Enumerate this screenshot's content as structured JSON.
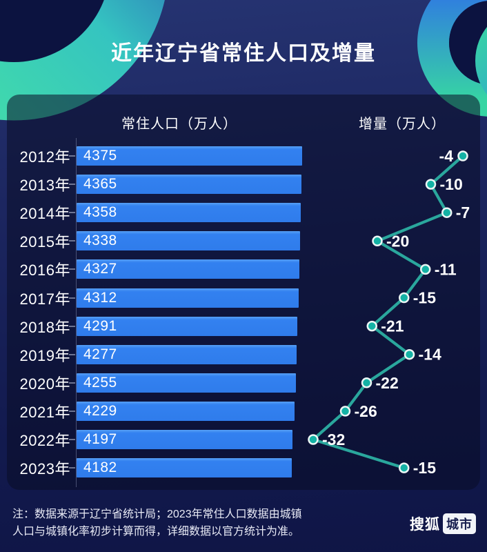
{
  "title": "近年辽宁省常住人口及增量",
  "columns": {
    "population": "常住人口（万人）",
    "increment": "增量（万人）"
  },
  "chart_data": {
    "type": "bar",
    "orientation": "horizontal",
    "categories": [
      "2012年",
      "2013年",
      "2014年",
      "2015年",
      "2016年",
      "2017年",
      "2018年",
      "2019年",
      "2020年",
      "2021年",
      "2022年",
      "2023年"
    ],
    "series": [
      {
        "name": "常住人口（万人）",
        "type": "bar",
        "values": [
          4375,
          4365,
          4358,
          4338,
          4327,
          4312,
          4291,
          4277,
          4255,
          4229,
          4197,
          4182
        ]
      },
      {
        "name": "增量（万人）",
        "type": "line",
        "values": [
          -4,
          -10,
          -7,
          -20,
          -11,
          -15,
          -21,
          -14,
          -22,
          -26,
          -32,
          -15
        ]
      }
    ],
    "title": "近年辽宁省常住人口及增量",
    "xlabel": "",
    "ylabel": "",
    "bar_baseline": 0,
    "data_labels": true,
    "grid": false,
    "legend_position": "column-headers"
  },
  "note": {
    "line1": "注：数据来源于辽宁省统计局；2023年常住人口数据由城镇",
    "line2": "人口与城镇化率初步计算而得，详细数据以官方统计为准。"
  },
  "logo": {
    "brand": "搜狐",
    "badge": "城市"
  },
  "colors": {
    "background_top": "#263472",
    "background_bottom": "#0f1545",
    "panel": "rgba(9,13,38,0.55)",
    "bar": "#3381f0",
    "line": "#2aa79d",
    "dot_fill": "#14b2a5",
    "dot_border": "#ebf6f5",
    "text": "#ffffff"
  }
}
